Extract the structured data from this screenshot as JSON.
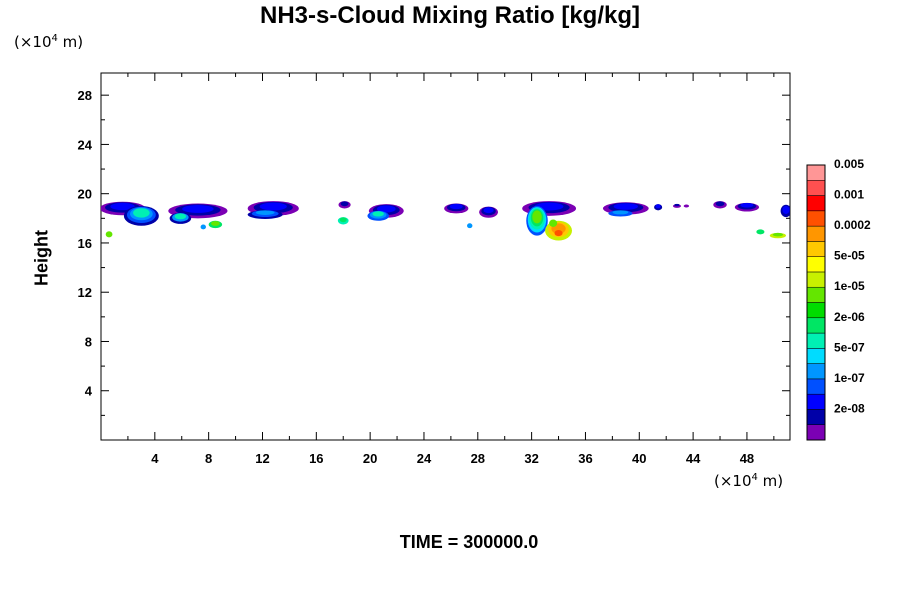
{
  "title": "NH3-s-Cloud Mixing Ratio [kg/kg]",
  "y_unit": {
    "prefix": "(×10",
    "exp": "4",
    "suffix": " m)"
  },
  "x_unit": {
    "prefix": "(×10",
    "exp": "4",
    "suffix": " m)"
  },
  "ylabel": "Height",
  "time_label": "TIME = 300000.0",
  "chart_data": {
    "type": "heatmap",
    "title": "NH3-s-Cloud Mixing Ratio [kg/kg]",
    "xlabel": "",
    "ylabel": "Height",
    "x_unit": "×10^4 m",
    "y_unit": "×10^4 m",
    "xlim": [
      0,
      51.2
    ],
    "ylim": [
      0,
      29.8
    ],
    "x_ticks": [
      4,
      8,
      12,
      16,
      20,
      24,
      28,
      32,
      36,
      40,
      44,
      48
    ],
    "y_ticks": [
      4,
      8,
      12,
      16,
      20,
      24,
      28
    ],
    "grid": false,
    "colorbar": {
      "placement": "right",
      "colors": [
        "#7b00b4",
        "#0000a8",
        "#0000ff",
        "#0050ff",
        "#0096ff",
        "#00dcff",
        "#00f0b4",
        "#00e664",
        "#00dc00",
        "#64e600",
        "#c8f000",
        "#ffff00",
        "#ffc800",
        "#ff9600",
        "#ff5000",
        "#ff0000",
        "#ff5050",
        "#ff9696"
      ],
      "labels": [
        "2e-08",
        "1e-07",
        "5e-07",
        "2e-06",
        "1e-05",
        "5e-05",
        "0.0002",
        "0.001",
        "0.005"
      ]
    },
    "cloud_regions": [
      {
        "x": [
          0.0,
          3.0
        ],
        "y": [
          18.2,
          19.4
        ],
        "level": "2e-08–5e-07"
      },
      {
        "x": [
          1.8,
          4.3
        ],
        "y": [
          17.2,
          19.0
        ],
        "level": "2e-08–5e-06"
      },
      {
        "x": [
          5.2,
          9.5
        ],
        "y": [
          17.6,
          19.2
        ],
        "level": "2e-08–5e-06"
      },
      {
        "x": [
          10.9,
          14.7
        ],
        "y": [
          18.1,
          19.4
        ],
        "level": "2e-08–5e-07"
      },
      {
        "x": [
          17.6,
          18.6
        ],
        "y": [
          18.8,
          19.4
        ],
        "level": "2e-08"
      },
      {
        "x": [
          19.6,
          22.6
        ],
        "y": [
          17.8,
          19.1
        ],
        "level": "2e-08–5e-06"
      },
      {
        "x": [
          25.5,
          27.4
        ],
        "y": [
          18.3,
          19.2
        ],
        "level": "2e-08–1e-07"
      },
      {
        "x": [
          28.0,
          29.5
        ],
        "y": [
          18.1,
          19.0
        ],
        "level": "2e-08–1e-07"
      },
      {
        "x": [
          31.4,
          35.5
        ],
        "y": [
          16.2,
          19.4
        ],
        "level": "2e-08–0.001"
      },
      {
        "x": [
          37.3,
          40.7
        ],
        "y": [
          18.4,
          19.4
        ],
        "level": "2e-08–5e-07"
      },
      {
        "x": [
          45.4,
          46.5
        ],
        "y": [
          18.8,
          19.4
        ],
        "level": "2e-08"
      },
      {
        "x": [
          47.1,
          49.0
        ],
        "y": [
          18.6,
          19.3
        ],
        "level": "2e-08–1e-07"
      },
      {
        "x": [
          48.8,
          51.2
        ],
        "y": [
          16.4,
          17.0
        ],
        "level": "1e-05"
      }
    ]
  }
}
